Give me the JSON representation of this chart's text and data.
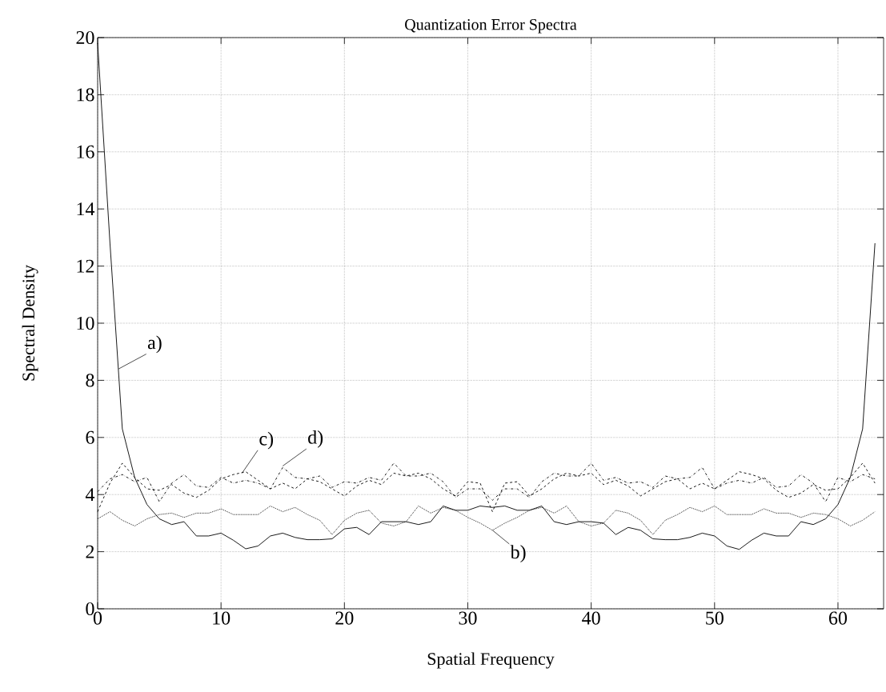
{
  "chart_data": {
    "type": "line",
    "title": "Quantization Error Spectra",
    "xlabel": "Spatial Frequency",
    "ylabel": "Spectral Density",
    "x": [
      0,
      1,
      2,
      3,
      4,
      5,
      6,
      7,
      8,
      9,
      10,
      11,
      12,
      13,
      14,
      15,
      16,
      17,
      18,
      19,
      20,
      21,
      22,
      23,
      24,
      25,
      26,
      27,
      28,
      29,
      30,
      31,
      32,
      33,
      34,
      35,
      36,
      37,
      38,
      39,
      40,
      41,
      42,
      43,
      44,
      45,
      46,
      47,
      48,
      49,
      50,
      51,
      52,
      53,
      54,
      55,
      56,
      57,
      58,
      59,
      60,
      61,
      62,
      63
    ],
    "series": [
      {
        "color": "#000000",
        "line_style": "solid",
        "values": [
          19.8,
          12.8,
          6.3,
          4.6,
          3.65,
          3.15,
          2.95,
          3.05,
          2.55,
          2.55,
          2.65,
          2.4,
          2.1,
          2.2,
          2.55,
          2.65,
          2.5,
          2.42,
          2.42,
          2.45,
          2.8,
          2.85,
          2.6,
          3.05,
          3.05,
          3.05,
          2.95,
          3.05,
          3.6,
          3.45,
          3.45,
          3.6,
          3.55,
          3.6,
          3.45,
          3.45,
          3.6,
          3.05,
          2.95,
          3.05,
          3.05,
          3.0,
          2.6,
          2.85,
          2.75,
          2.45,
          2.42,
          2.42,
          2.5,
          2.65,
          2.55,
          2.2,
          2.08,
          2.4,
          2.65,
          2.55,
          2.55,
          3.05,
          2.95,
          3.15,
          3.65,
          4.6,
          6.3,
          12.8
        ]
      },
      {
        "color": "#000000",
        "line_style": "dotted",
        "values": [
          3.15,
          3.4,
          3.1,
          2.9,
          3.15,
          3.3,
          3.35,
          3.2,
          3.35,
          3.35,
          3.5,
          3.3,
          3.3,
          3.3,
          3.6,
          3.4,
          3.55,
          3.3,
          3.1,
          2.6,
          3.1,
          3.35,
          3.45,
          3.0,
          2.9,
          3.05,
          3.6,
          3.35,
          3.55,
          3.45,
          3.2,
          3.0,
          2.75,
          3.0,
          3.2,
          3.45,
          3.55,
          3.35,
          3.6,
          3.05,
          2.9,
          3.0,
          3.45,
          3.35,
          3.1,
          2.6,
          3.1,
          3.3,
          3.55,
          3.4,
          3.6,
          3.3,
          3.3,
          3.3,
          3.5,
          3.35,
          3.35,
          3.2,
          3.35,
          3.3,
          3.15,
          2.9,
          3.1,
          3.4
        ]
      },
      {
        "color": "#000000",
        "line_style": "dashed",
        "values": [
          3.4,
          4.4,
          5.1,
          4.6,
          4.2,
          4.15,
          4.35,
          4.05,
          3.9,
          4.15,
          4.55,
          4.7,
          4.8,
          4.5,
          4.2,
          4.4,
          4.2,
          4.55,
          4.45,
          4.2,
          3.95,
          4.3,
          4.5,
          4.35,
          4.75,
          4.65,
          4.75,
          4.55,
          4.2,
          3.95,
          4.45,
          4.4,
          3.4,
          4.4,
          4.45,
          3.95,
          4.2,
          4.55,
          4.75,
          4.65,
          4.75,
          4.35,
          4.5,
          4.3,
          3.95,
          4.2,
          4.45,
          4.55,
          4.2,
          4.4,
          4.2,
          4.5,
          4.8,
          4.7,
          4.55,
          4.15,
          3.9,
          4.05,
          4.35,
          4.15,
          4.2,
          4.6,
          5.1,
          4.4
        ]
      },
      {
        "color": "#000000",
        "line_style": "dashdot",
        "values": [
          4.1,
          4.55,
          4.7,
          4.45,
          4.6,
          3.75,
          4.4,
          4.7,
          4.3,
          4.25,
          4.6,
          4.4,
          4.5,
          4.4,
          4.2,
          4.95,
          4.6,
          4.55,
          4.65,
          4.25,
          4.45,
          4.4,
          4.6,
          4.5,
          5.1,
          4.65,
          4.65,
          4.75,
          4.45,
          3.9,
          4.2,
          4.2,
          3.8,
          4.2,
          4.2,
          3.9,
          4.45,
          4.75,
          4.65,
          4.65,
          5.1,
          4.5,
          4.6,
          4.4,
          4.45,
          4.25,
          4.65,
          4.55,
          4.6,
          4.95,
          4.2,
          4.4,
          4.5,
          4.4,
          4.6,
          4.25,
          4.3,
          4.7,
          4.4,
          3.75,
          4.6,
          4.45,
          4.7,
          4.55
        ]
      }
    ],
    "annotations": [
      {
        "text": "a)",
        "x": 1.7,
        "y": 8.4
      },
      {
        "text": "b)",
        "x": 32,
        "y": 2.75
      },
      {
        "text": "c)",
        "x": 11.7,
        "y": 4.75
      },
      {
        "text": "d)",
        "x": 15,
        "y": 5.0
      }
    ],
    "xlim": [
      0,
      63.7
    ],
    "ylim": [
      0,
      20
    ],
    "xticks": [
      0,
      10,
      20,
      30,
      40,
      50,
      60
    ],
    "yticks": [
      0,
      2,
      4,
      6,
      8,
      10,
      12,
      14,
      16,
      18,
      20
    ],
    "grid": true
  }
}
